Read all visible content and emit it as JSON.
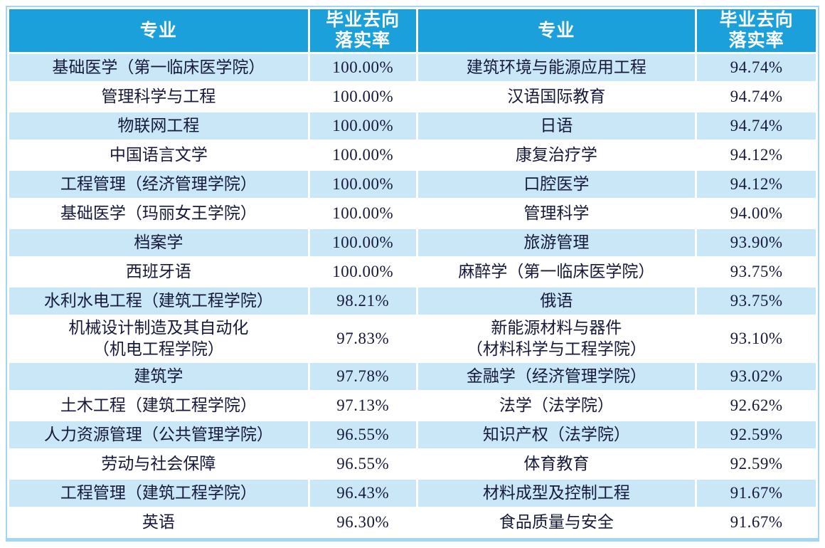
{
  "table": {
    "headers": [
      "专业",
      "毕业去向\n落实率",
      "专业",
      "毕业去向\n落实率"
    ],
    "rows": [
      {
        "left_major": "基础医学（第一临床医学院）",
        "left_rate": "100.00%",
        "right_major": "建筑环境与能源应用工程",
        "right_rate": "94.74%"
      },
      {
        "left_major": "管理科学与工程",
        "left_rate": "100.00%",
        "right_major": "汉语国际教育",
        "right_rate": "94.74%"
      },
      {
        "left_major": "物联网工程",
        "left_rate": "100.00%",
        "right_major": "日语",
        "right_rate": "94.74%"
      },
      {
        "left_major": "中国语言文学",
        "left_rate": "100.00%",
        "right_major": "康复治疗学",
        "right_rate": "94.12%"
      },
      {
        "left_major": "工程管理（经济管理学院）",
        "left_rate": "100.00%",
        "right_major": "口腔医学",
        "right_rate": "94.12%"
      },
      {
        "left_major": "基础医学（玛丽女王学院）",
        "left_rate": "100.00%",
        "right_major": "管理科学",
        "right_rate": "94.00%"
      },
      {
        "left_major": "档案学",
        "left_rate": "100.00%",
        "right_major": "旅游管理",
        "right_rate": "93.90%"
      },
      {
        "left_major": "西班牙语",
        "left_rate": "100.00%",
        "right_major": "麻醉学（第一临床医学院）",
        "right_rate": "93.75%"
      },
      {
        "left_major": "水利水电工程（建筑工程学院）",
        "left_rate": "98.21%",
        "right_major": "俄语",
        "right_rate": "93.75%"
      },
      {
        "left_major": "机械设计制造及其自动化\n（机电工程学院）",
        "left_rate": "97.83%",
        "right_major": "新能源材料与器件\n（材料科学与工程学院）",
        "right_rate": "93.10%"
      },
      {
        "left_major": "建筑学",
        "left_rate": "97.78%",
        "right_major": "金融学（经济管理学院）",
        "right_rate": "93.02%"
      },
      {
        "left_major": "土木工程（建筑工程学院）",
        "left_rate": "97.13%",
        "right_major": "法学（法学院）",
        "right_rate": "92.62%"
      },
      {
        "left_major": "人力资源管理（公共管理学院）",
        "left_rate": "96.55%",
        "right_major": "知识产权（法学院）",
        "right_rate": "92.59%"
      },
      {
        "left_major": "劳动与社会保障",
        "left_rate": "96.55%",
        "right_major": "体育教育",
        "right_rate": "92.59%"
      },
      {
        "left_major": "工程管理（建筑工程学院）",
        "left_rate": "96.43%",
        "right_major": "材料成型及控制工程",
        "right_rate": "91.67%"
      },
      {
        "left_major": "英语",
        "left_rate": "96.30%",
        "right_major": "食品质量与安全",
        "right_rate": "91.67%"
      }
    ]
  },
  "colors": {
    "header_bg": "#1CA0DC",
    "row_alt_bg": "#C9E7F6",
    "row_bg": "#FFFFFF",
    "outer_border": "#A3D7F0",
    "gridline": "#FFFFFF",
    "body_text": "#16193B",
    "header_text": "#FFFFFF"
  }
}
